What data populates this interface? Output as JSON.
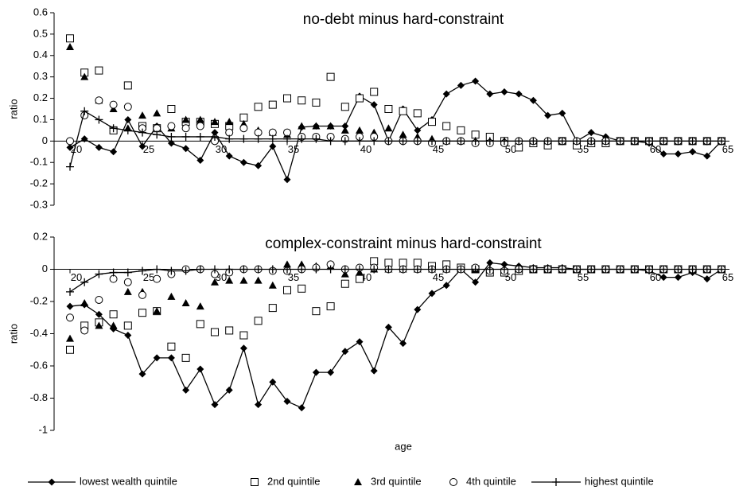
{
  "chart_data": [
    {
      "type": "line",
      "title": "no-debt minus hard-constraint",
      "ylabel": "ratio",
      "x": [
        20,
        21,
        22,
        23,
        24,
        25,
        26,
        27,
        28,
        29,
        30,
        31,
        32,
        33,
        34,
        35,
        36,
        37,
        38,
        39,
        40,
        41,
        42,
        43,
        44,
        45,
        46,
        47,
        48,
        49,
        50,
        51,
        52,
        53,
        54,
        55,
        56,
        57,
        58,
        59,
        60,
        61,
        62,
        63,
        64,
        65
      ],
      "xlim": [
        20,
        65
      ],
      "xticks": [
        20,
        25,
        30,
        35,
        40,
        45,
        50,
        55,
        60,
        65
      ],
      "ylim": [
        -0.3,
        0.6
      ],
      "yticks": [
        0.6,
        0.5,
        0.4,
        0.3,
        0.2,
        0.1,
        0,
        -0.1,
        -0.2,
        -0.3
      ],
      "series": [
        {
          "name": "lowest wealth quintile",
          "color": "#000000",
          "marker": "diamond",
          "line": true,
          "values": [
            -0.03,
            0.01,
            -0.03,
            -0.05,
            0.1,
            -0.025,
            0.07,
            -0.01,
            -0.035,
            -0.09,
            0.04,
            -0.07,
            -0.1,
            -0.115,
            -0.025,
            -0.18,
            0.065,
            0.07,
            0.07,
            0.07,
            0.21,
            0.17,
            0.0,
            0.15,
            0.05,
            0.1,
            0.22,
            0.26,
            0.28,
            0.22,
            0.23,
            0.22,
            0.19,
            0.12,
            0.13,
            0.0,
            0.04,
            0.02,
            0.0,
            0.0,
            -0.01,
            -0.06,
            -0.06,
            -0.05,
            -0.07,
            0.0
          ]
        },
        {
          "name": "2nd quintile",
          "color": "#000000",
          "marker": "square",
          "line": false,
          "values": [
            0.48,
            0.32,
            0.33,
            0.05,
            0.26,
            0.07,
            0.06,
            0.15,
            0.09,
            0.09,
            0.08,
            0.07,
            0.11,
            0.16,
            0.17,
            0.2,
            0.19,
            0.18,
            0.3,
            0.16,
            0.2,
            0.23,
            0.15,
            0.14,
            0.13,
            0.09,
            0.07,
            0.05,
            0.03,
            0.02,
            0.0,
            -0.03,
            -0.01,
            -0.02,
            0.0,
            -0.02,
            -0.01,
            -0.01,
            0.0,
            0.0,
            0.0,
            0.0,
            0.0,
            0.0,
            0.0,
            0.0
          ]
        },
        {
          "name": "3rd quintile",
          "color": "#000000",
          "marker": "triangle",
          "line": false,
          "values": [
            0.44,
            0.3,
            0.19,
            0.15,
            0.06,
            0.12,
            0.13,
            0.06,
            0.1,
            0.1,
            0.09,
            0.09,
            0.08,
            0.05,
            0.04,
            0.03,
            0.07,
            0.07,
            0.07,
            0.05,
            0.05,
            0.04,
            0.06,
            0.03,
            0.02,
            0.01,
            0.0,
            0.0,
            0.0,
            0.0,
            0.0,
            0.0,
            0.0,
            0.0,
            0.0,
            0.0,
            0.0,
            0.0,
            0.0,
            0.0,
            0.0,
            0.0,
            0.0,
            0.0,
            0.0,
            0.0
          ]
        },
        {
          "name": "4th quintile",
          "color": "#000000",
          "marker": "circle",
          "line": false,
          "values": [
            0.0,
            0.12,
            0.19,
            0.17,
            0.16,
            0.06,
            0.06,
            0.07,
            0.06,
            0.07,
            0.0,
            0.04,
            0.06,
            0.04,
            0.04,
            0.04,
            0.02,
            0.02,
            0.02,
            0.01,
            0.02,
            0.02,
            0.0,
            0.0,
            0.0,
            -0.01,
            0.0,
            0.0,
            -0.01,
            -0.01,
            -0.01,
            0.0,
            0.0,
            0.0,
            0.0,
            0.0,
            0.0,
            0.0,
            0.0,
            0.0,
            0.0,
            0.0,
            0.0,
            0.0,
            0.0,
            0.0
          ]
        },
        {
          "name": "highest quintile",
          "color": "#000000",
          "marker": "plus",
          "line": true,
          "values": [
            -0.12,
            0.14,
            0.1,
            0.06,
            0.05,
            0.04,
            0.03,
            0.02,
            0.02,
            0.02,
            0.02,
            0.01,
            0.01,
            0.01,
            0.01,
            0.01,
            0.01,
            0.01,
            0.0,
            0.0,
            0.0,
            0.0,
            0.0,
            0.0,
            0.0,
            0.0,
            0.0,
            0.0,
            0.0,
            0.0,
            0.0,
            0.0,
            0.0,
            0.0,
            0.0,
            0.0,
            0.0,
            0.0,
            0.0,
            0.0,
            0.0,
            0.0,
            0.0,
            0.0,
            0.0,
            0.0
          ]
        }
      ]
    },
    {
      "type": "line",
      "title": "complex-constraint minus hard-constraint",
      "ylabel": "ratio",
      "xlabel": "age",
      "x": [
        20,
        21,
        22,
        23,
        24,
        25,
        26,
        27,
        28,
        29,
        30,
        31,
        32,
        33,
        34,
        35,
        36,
        37,
        38,
        39,
        40,
        41,
        42,
        43,
        44,
        45,
        46,
        47,
        48,
        49,
        50,
        51,
        52,
        53,
        54,
        55,
        56,
        57,
        58,
        59,
        60,
        61,
        62,
        63,
        64,
        65
      ],
      "xlim": [
        20,
        65
      ],
      "xticks": [
        20,
        25,
        30,
        35,
        40,
        45,
        50,
        55,
        60,
        65
      ],
      "ylim": [
        -1,
        0.2
      ],
      "yticks": [
        0.2,
        0,
        -0.2,
        -0.4,
        -0.6,
        -0.8,
        -1
      ],
      "series": [
        {
          "color": "#000000",
          "marker": "diamond",
          "line": true,
          "values": [
            -0.23,
            -0.22,
            -0.28,
            -0.37,
            -0.41,
            -0.65,
            -0.55,
            -0.55,
            -0.75,
            -0.62,
            -0.84,
            -0.75,
            -0.49,
            -0.84,
            -0.7,
            -0.82,
            -0.86,
            -0.64,
            -0.64,
            -0.51,
            -0.45,
            -0.63,
            -0.36,
            -0.46,
            -0.25,
            -0.15,
            -0.1,
            0.0,
            -0.08,
            0.04,
            0.03,
            0.02,
            0.01,
            0.01,
            0.01,
            0.0,
            0.0,
            0.0,
            0.0,
            0.0,
            -0.01,
            -0.05,
            -0.05,
            -0.02,
            -0.06,
            0.0
          ]
        },
        {
          "color": "#000000",
          "marker": "square",
          "line": false,
          "values": [
            -0.5,
            -0.35,
            -0.33,
            -0.28,
            -0.35,
            -0.27,
            -0.26,
            -0.48,
            -0.55,
            -0.34,
            -0.39,
            -0.38,
            -0.41,
            -0.32,
            -0.24,
            -0.13,
            -0.12,
            -0.26,
            -0.23,
            -0.09,
            -0.06,
            0.05,
            0.04,
            0.04,
            0.04,
            0.02,
            0.03,
            0.01,
            0.0,
            -0.02,
            -0.02,
            -0.01,
            0.0,
            0.0,
            0.0,
            0.0,
            0.0,
            0.0,
            0.0,
            0.0,
            0.0,
            0.0,
            0.0,
            0.0,
            0.0,
            0.0
          ]
        },
        {
          "color": "#000000",
          "marker": "triangle",
          "line": false,
          "values": [
            -0.43,
            -0.21,
            -0.35,
            -0.35,
            -0.14,
            -0.14,
            -0.26,
            -0.17,
            -0.21,
            -0.23,
            -0.08,
            -0.07,
            -0.07,
            -0.07,
            -0.1,
            0.03,
            0.03,
            0.02,
            0.02,
            -0.03,
            -0.02,
            0.0,
            0.0,
            0.0,
            0.0,
            0.0,
            0.0,
            0.0,
            0.0,
            0.0,
            0.0,
            0.0,
            0.0,
            0.0,
            0.0,
            0.0,
            0.0,
            0.0,
            0.0,
            0.0,
            0.0,
            0.0,
            0.0,
            0.0,
            0.0,
            0.0
          ]
        },
        {
          "color": "#000000",
          "marker": "circle",
          "line": false,
          "values": [
            -0.3,
            -0.38,
            -0.19,
            -0.06,
            -0.08,
            -0.16,
            -0.06,
            -0.03,
            0.0,
            0.0,
            -0.03,
            -0.02,
            0.0,
            0.0,
            -0.01,
            -0.01,
            0.0,
            0.01,
            0.03,
            0.0,
            0.01,
            0.01,
            0.0,
            0.0,
            0.0,
            0.0,
            0.0,
            0.0,
            0.01,
            -0.01,
            -0.01,
            0.0,
            0.0,
            0.0,
            0.0,
            0.0,
            0.0,
            0.0,
            0.0,
            0.0,
            0.0,
            0.0,
            0.0,
            0.0,
            0.0,
            0.0
          ]
        },
        {
          "color": "#000000",
          "marker": "plus",
          "line": true,
          "values": [
            -0.14,
            -0.08,
            -0.03,
            -0.02,
            -0.02,
            -0.01,
            0.0,
            -0.01,
            -0.01,
            0.0,
            0.0,
            0.0,
            0.0,
            0.0,
            0.0,
            0.0,
            0.0,
            0.0,
            0.0,
            0.0,
            0.0,
            0.0,
            0.0,
            0.0,
            0.0,
            0.0,
            0.0,
            0.0,
            0.0,
            0.0,
            0.0,
            0.0,
            0.0,
            0.0,
            0.0,
            0.0,
            0.0,
            0.0,
            0.0,
            0.0,
            0.0,
            0.0,
            0.0,
            0.0,
            0.0,
            0.0
          ]
        }
      ]
    }
  ]
}
